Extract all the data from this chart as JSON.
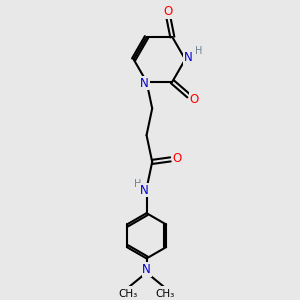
{
  "background_color": "#e8e8e8",
  "bond_color": "#000000",
  "N_color": "#0000cd",
  "O_color": "#ff0000",
  "H_color": "#708090",
  "figsize": [
    3.0,
    3.0
  ],
  "dpi": 100,
  "lw": 1.5,
  "fs": 8.5,
  "xlim": [
    0,
    6
  ],
  "ylim": [
    0,
    9
  ]
}
